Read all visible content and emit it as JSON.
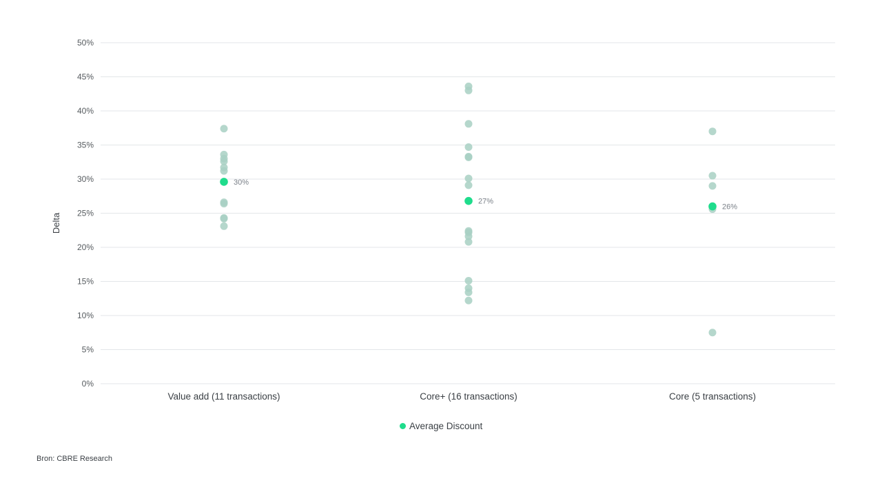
{
  "chart_data": {
    "type": "scatter",
    "ylabel": "Delta",
    "ylim": [
      0,
      50
    ],
    "yticks": [
      0,
      5,
      10,
      15,
      20,
      25,
      30,
      35,
      40,
      45,
      50
    ],
    "ytick_suffix": "%",
    "grid": true,
    "legend_position": "bottom-center",
    "categories": [
      "Value add (11 transactions)",
      "Core+ (16 transactions)",
      "Core (5 transactions)"
    ],
    "transactions": [
      [
        37.4,
        33.6,
        33.0,
        32.6,
        31.7,
        31.2,
        26.6,
        26.4,
        24.3,
        24.2,
        23.1
      ],
      [
        43.6,
        43.0,
        38.1,
        34.7,
        33.3,
        33.2,
        30.1,
        29.1,
        22.4,
        22.2,
        21.6,
        20.8,
        15.1,
        14.0,
        13.4,
        12.2
      ],
      [
        37.0,
        30.5,
        29.0,
        25.6,
        7.5
      ]
    ],
    "average_discount": {
      "name": "Average Discount",
      "values": [
        29.6,
        26.8,
        26.0
      ],
      "labels": [
        "30%",
        "27%",
        "26%"
      ]
    },
    "colors": {
      "transaction": "#a8d0c3",
      "average": "#1fdc8c",
      "grid": "#e3e6e8"
    }
  },
  "source": "Bron: CBRE Research"
}
